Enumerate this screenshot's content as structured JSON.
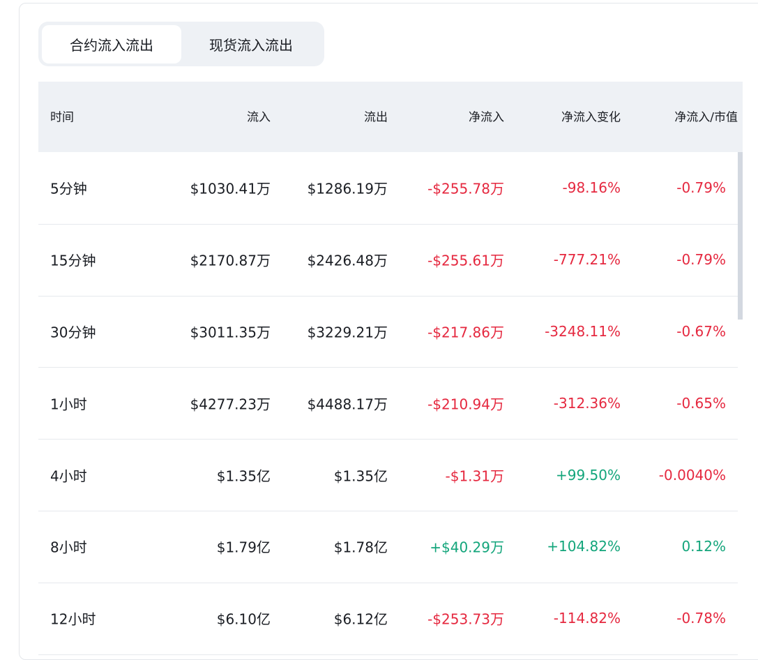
{
  "tabs": [
    "合约流入流出",
    "现货流入流出"
  ],
  "active_tab": 0,
  "table": {
    "headers": [
      "时间",
      "流入",
      "流出",
      "净流入",
      "净流入变化",
      "净流入/市值"
    ],
    "rows": [
      [
        "5分钟",
        "$1030.41万",
        "$1286.19万",
        {
          "text": "-$255.78万",
          "color": "#e5283f"
        },
        {
          "text": "-98.16%",
          "color": "#e5283f"
        },
        {
          "text": "-0.79%",
          "color": "#e5283f"
        }
      ],
      [
        "15分钟",
        "$2170.87万",
        "$2426.48万",
        {
          "text": "-$255.61万",
          "color": "#e5283f"
        },
        {
          "text": "-777.21%",
          "color": "#e5283f"
        },
        {
          "text": "-0.79%",
          "color": "#e5283f"
        }
      ],
      [
        "30分钟",
        "$3011.35万",
        "$3229.21万",
        {
          "text": "-$217.86万",
          "color": "#e5283f"
        },
        {
          "text": "-3248.11%",
          "color": "#e5283f"
        },
        {
          "text": "-0.67%",
          "color": "#e5283f"
        }
      ],
      [
        "1小时",
        "$4277.23万",
        "$4488.17万",
        {
          "text": "-$210.94万",
          "color": "#e5283f"
        },
        {
          "text": "-312.36%",
          "color": "#e5283f"
        },
        {
          "text": "-0.65%",
          "color": "#e5283f"
        }
      ],
      [
        "4小时",
        "$1.35亿",
        "$1.35亿",
        {
          "text": "-$1.31万",
          "color": "#e5283f"
        },
        {
          "text": "+99.50%",
          "color": "#13a57b"
        },
        {
          "text": "-0.0040%",
          "color": "#e5283f"
        }
      ],
      [
        "8小时",
        "$1.79亿",
        "$1.78亿",
        {
          "text": "+$40.29万",
          "color": "#13a57b"
        },
        {
          "text": "+104.82%",
          "color": "#13a57b"
        },
        {
          "text": "0.12%",
          "color": "#13a57b"
        }
      ],
      [
        "12小时",
        "$6.10亿",
        "$6.12亿",
        {
          "text": "-$253.73万",
          "color": "#e5283f"
        },
        {
          "text": "-114.82%",
          "color": "#e5283f"
        },
        {
          "text": "-0.78%",
          "color": "#e5283f"
        }
      ]
    ]
  }
}
